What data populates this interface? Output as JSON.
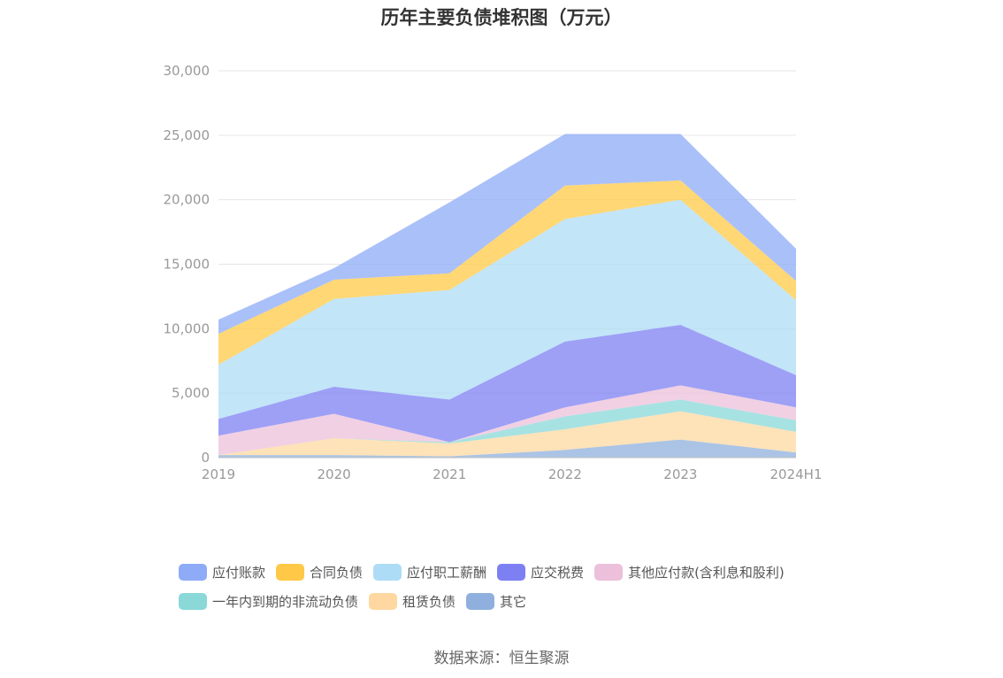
{
  "chart_data": {
    "type": "area",
    "stacked": true,
    "title": "历年主要负债堆积图（万元）",
    "categories": [
      "2019",
      "2020",
      "2021",
      "2022",
      "2023",
      "2024H1"
    ],
    "ylim": [
      0,
      30000
    ],
    "yticks": [
      0,
      5000,
      10000,
      15000,
      20000,
      25000,
      30000
    ],
    "ytick_labels": [
      "0",
      "5,000",
      "10,000",
      "15,000",
      "20,000",
      "25,000",
      "30,000"
    ],
    "grid": true,
    "legend_position": "bottom",
    "series": [
      {
        "name": "其它",
        "color": "#8fb0de",
        "values": [
          200,
          200,
          100,
          600,
          1400,
          400
        ]
      },
      {
        "name": "租赁负债",
        "color": "#fed8a0",
        "values": [
          0,
          1300,
          1000,
          1600,
          2200,
          1600
        ]
      },
      {
        "name": "一年内到期的非流动负债",
        "color": "#8ad8d8",
        "values": [
          0,
          0,
          100,
          1000,
          900,
          900
        ]
      },
      {
        "name": "其他应付款(含利息和股利)",
        "color": "#ecc0db",
        "values": [
          1500,
          1900,
          0,
          700,
          1100,
          1000
        ]
      },
      {
        "name": "应交税费",
        "color": "#7d80f3",
        "values": [
          1300,
          2100,
          3300,
          5100,
          4700,
          2500
        ]
      },
      {
        "name": "应付职工薪酬",
        "color": "#addcf6",
        "values": [
          4200,
          6800,
          8500,
          9500,
          9700,
          5800
        ]
      },
      {
        "name": "合同负债",
        "color": "#ffc947",
        "values": [
          2400,
          1500,
          1300,
          2600,
          1500,
          1500
        ]
      },
      {
        "name": "应付账款",
        "color": "#8eabf7",
        "values": [
          1100,
          900,
          5500,
          4000,
          3600,
          2500
        ]
      }
    ],
    "legend_rows": [
      [
        "应付账款",
        "合同负债",
        "应付职工薪酬",
        "应交税费",
        "其他应付款(含利息和股利)"
      ],
      [
        "一年内到期的非流动负债",
        "租赁负债",
        "其它"
      ]
    ]
  },
  "source": "数据来源：恒生聚源"
}
